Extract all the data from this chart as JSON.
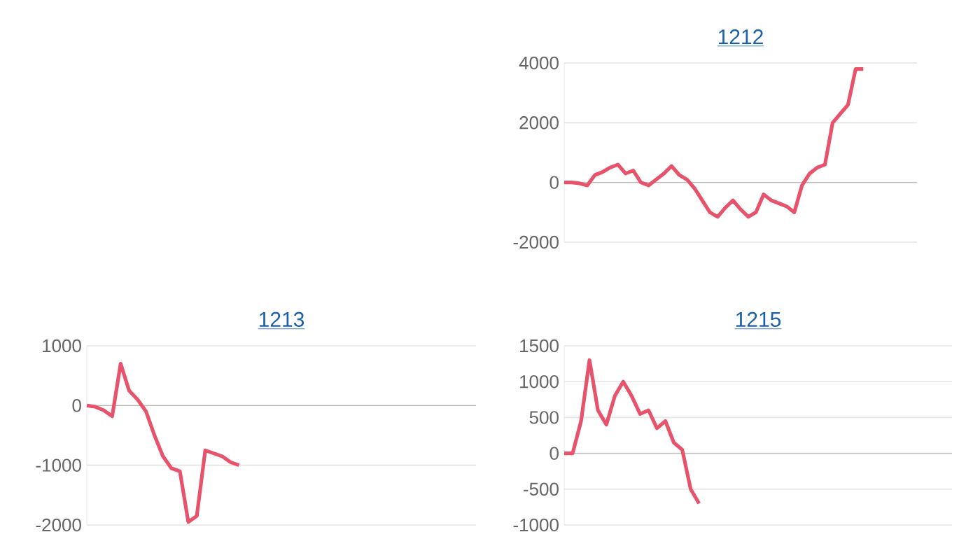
{
  "chart_data": [
    {
      "type": "line",
      "title": "1212",
      "color": "#e8536c",
      "grid": "y",
      "tick_labels": "y",
      "ylim": [
        -2000,
        4000
      ],
      "yticks": [
        -2000,
        0,
        2000,
        4000
      ],
      "categories": [
        null,
        null,
        null,
        null,
        null,
        null,
        null,
        null,
        null,
        null,
        null,
        null,
        null,
        null,
        null,
        null,
        null,
        null,
        null,
        null,
        null,
        null,
        null,
        null,
        null,
        null,
        null,
        null,
        null,
        null,
        null,
        null,
        null,
        null,
        null,
        null,
        null,
        null,
        null,
        null,
        null,
        null,
        null,
        null,
        null,
        null,
        null
      ],
      "values": [
        0,
        0,
        -30,
        -100,
        250,
        350,
        500,
        600,
        300,
        400,
        0,
        -100,
        100,
        300,
        550,
        250,
        100,
        -200,
        -600,
        -1000,
        -1150,
        -850,
        -600,
        -900,
        -1150,
        -1000,
        -400,
        -600,
        -700,
        -800,
        -1000,
        -100,
        300,
        500,
        600,
        2000,
        2300,
        2600,
        3800,
        3800,
        null,
        null,
        null,
        null,
        null,
        null,
        null
      ]
    },
    {
      "type": "line",
      "title": "1213",
      "color": "#e8536c",
      "grid": "y",
      "tick_labels": "y",
      "ylim": [
        -2000,
        1000
      ],
      "yticks": [
        -2000,
        -1000,
        0,
        1000
      ],
      "categories": [
        null,
        null,
        null,
        null,
        null,
        null,
        null,
        null,
        null,
        null,
        null,
        null,
        null,
        null,
        null,
        null,
        null,
        null,
        null,
        null,
        null,
        null,
        null,
        null,
        null,
        null,
        null,
        null,
        null,
        null,
        null,
        null,
        null,
        null,
        null,
        null,
        null,
        null,
        null,
        null,
        null,
        null,
        null,
        null,
        null,
        null,
        null
      ],
      "values": [
        0,
        -20,
        -80,
        -180,
        700,
        250,
        100,
        -100,
        -500,
        -850,
        -1050,
        -1100,
        -1950,
        -1850,
        -750,
        -800,
        -850,
        -950,
        -1000,
        null,
        null,
        null,
        null,
        null,
        null,
        null,
        null,
        null,
        null,
        null,
        null,
        null,
        null,
        null,
        null,
        null,
        null,
        null,
        null,
        null,
        null,
        null,
        null,
        null,
        null,
        null,
        null
      ]
    },
    {
      "type": "line",
      "title": "1215",
      "color": "#e8536c",
      "grid": "y",
      "tick_labels": "y",
      "ylim": [
        -1000,
        1500
      ],
      "yticks": [
        -1000,
        -500,
        0,
        500,
        1000,
        1500
      ],
      "categories": [
        null,
        null,
        null,
        null,
        null,
        null,
        null,
        null,
        null,
        null,
        null,
        null,
        null,
        null,
        null,
        null,
        null,
        null,
        null,
        null,
        null,
        null,
        null,
        null,
        null,
        null,
        null,
        null,
        null,
        null,
        null,
        null,
        null,
        null,
        null,
        null,
        null,
        null,
        null,
        null,
        null,
        null,
        null,
        null,
        null,
        null,
        null
      ],
      "values": [
        0,
        0,
        450,
        1300,
        600,
        400,
        800,
        1000,
        800,
        550,
        600,
        350,
        450,
        150,
        50,
        -500,
        -700,
        null,
        null,
        null,
        null,
        null,
        null,
        null,
        null,
        null,
        null,
        null,
        null,
        null,
        null,
        null,
        null,
        null,
        null,
        null,
        null,
        null,
        null,
        null,
        null,
        null,
        null,
        null,
        null,
        null,
        null
      ]
    }
  ]
}
